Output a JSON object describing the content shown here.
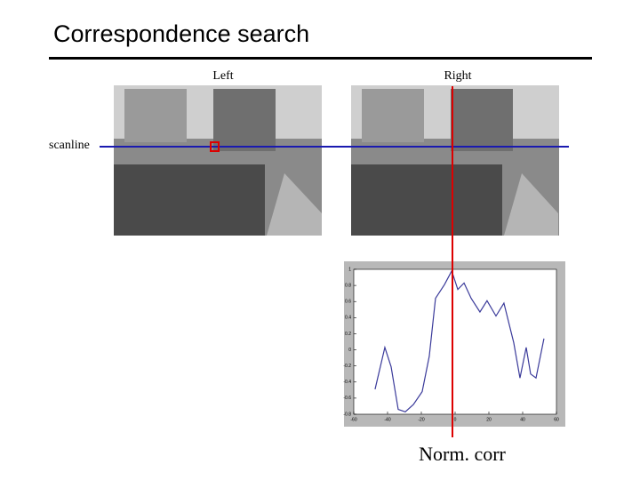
{
  "slide": {
    "title": "Correspondence search",
    "left_label": "Left",
    "right_label": "Right",
    "scanline_label": "scanline",
    "plot_label": "Norm. corr"
  },
  "chart_data": {
    "type": "line",
    "color": "#3a3a9a",
    "x": [
      -47.4,
      -41.6,
      -37.9,
      -33.7,
      -29.5,
      -24.7,
      -19.5,
      -15.3,
      -11.6,
      -6.3,
      -2,
      1.6,
      5.3,
      9.5,
      14.7,
      18.9,
      24.2,
      28.9,
      34.7,
      38.4,
      42.1,
      44.7,
      47.9,
      52.6
    ],
    "values": [
      -0.49,
      0.03,
      -0.21,
      -0.74,
      -0.77,
      -0.68,
      -0.52,
      -0.08,
      0.64,
      0.81,
      0.98,
      0.75,
      0.83,
      0.64,
      0.47,
      0.61,
      0.42,
      0.58,
      0.09,
      -0.35,
      0.03,
      -0.3,
      -0.35,
      0.14
    ],
    "xlim": [
      -60,
      60
    ],
    "xticks": [
      -60,
      -40,
      -20,
      0,
      20,
      40,
      60
    ],
    "ylim": [
      -0.8,
      1
    ],
    "yticks": [
      -0.8,
      -0.6,
      -0.4,
      -0.2,
      0,
      0.2,
      0.4,
      0.6,
      0.8,
      1
    ]
  }
}
